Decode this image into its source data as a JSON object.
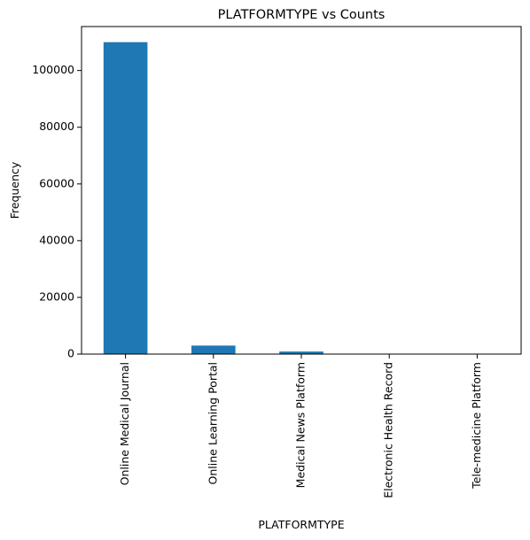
{
  "chart_data": {
    "type": "bar",
    "title": "PLATFORMTYPE vs Counts",
    "xlabel": "PLATFORMTYPE",
    "ylabel": "Frequency",
    "categories": [
      "Online Medical Journal",
      "Online Learning Portal",
      "Medical News Platform",
      "Electronic Health Record",
      "Tele-medicine Platform"
    ],
    "values": [
      110000,
      3000,
      900,
      30,
      20
    ],
    "ylim": [
      0,
      115500
    ],
    "yticks": [
      0,
      20000,
      40000,
      60000,
      80000,
      100000
    ],
    "grid": false,
    "legend": "none",
    "bar_color": "#1f77b4"
  }
}
